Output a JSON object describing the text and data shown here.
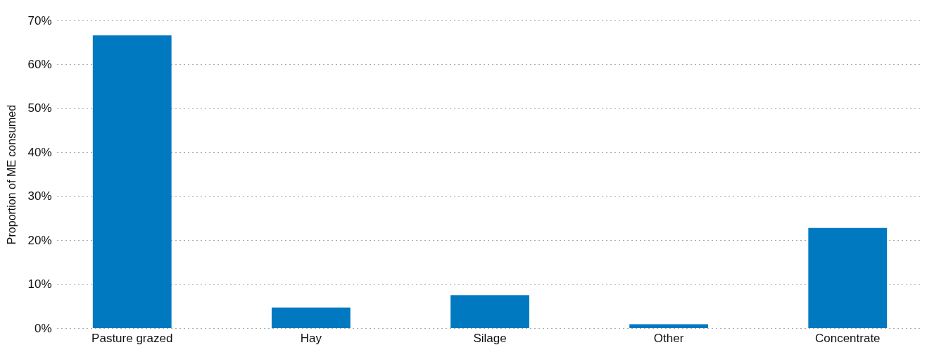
{
  "chart_data": {
    "type": "bar",
    "ylabel": "Proportion of ME consumed",
    "categories": [
      "Pasture grazed",
      "Hay",
      "Silage",
      "Other",
      "Concentrate"
    ],
    "values": [
      66.6,
      4.7,
      7.5,
      0.9,
      22.8
    ],
    "color": "#0079c1",
    "ylim": [
      0,
      70
    ],
    "yticks": [
      {
        "value": 0,
        "label": "0%"
      },
      {
        "value": 10,
        "label": "10%"
      },
      {
        "value": 20,
        "label": "20%"
      },
      {
        "value": 30,
        "label": "30%"
      },
      {
        "value": 40,
        "label": "40%"
      },
      {
        "value": 50,
        "label": "50%"
      },
      {
        "value": 60,
        "label": "60%"
      },
      {
        "value": 70,
        "label": "70%"
      }
    ],
    "grid": "y"
  }
}
